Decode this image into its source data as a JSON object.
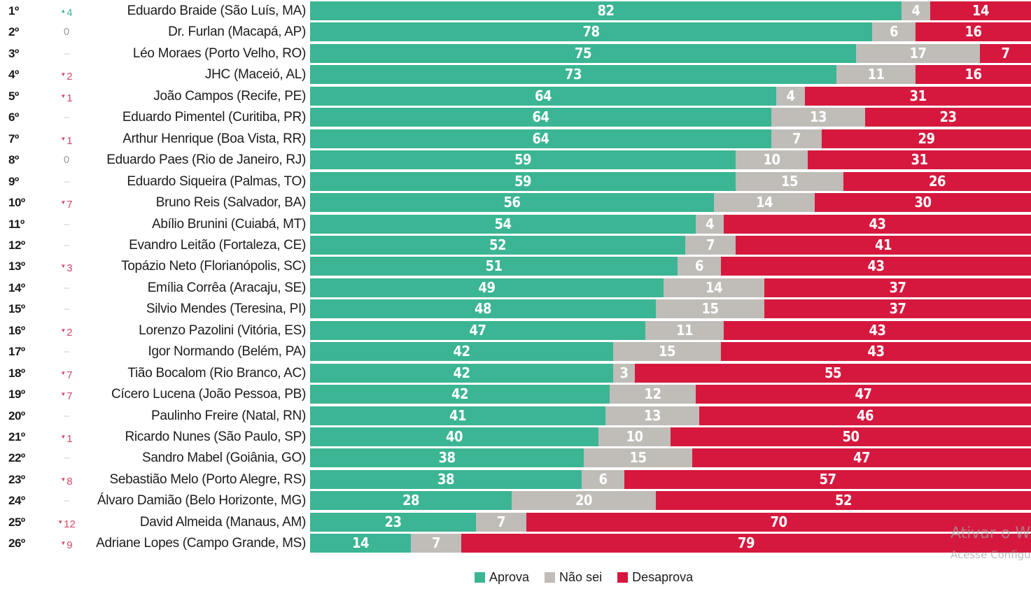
{
  "chart_data": {
    "type": "bar",
    "orientation": "horizontal",
    "stacked": true,
    "normalized_percent": true,
    "title": "",
    "xlabel": "",
    "ylabel": "",
    "xlim": [
      0,
      100
    ],
    "grid": false,
    "legend_placement": "bottom-center",
    "series": [
      {
        "name": "Aprova",
        "color": "#3bb594"
      },
      {
        "name": "Não sei",
        "color": "#c0bcb8"
      },
      {
        "name": "Desaprova",
        "color": "#d6183e"
      }
    ],
    "rows": [
      {
        "rank": "1º",
        "change": "4",
        "trend": "up",
        "name": "Eduardo Braide (São Luís, MA)",
        "values": [
          82,
          4,
          14
        ]
      },
      {
        "rank": "2º",
        "change": "0",
        "trend": "same",
        "name": "Dr. Furlan (Macapá, AP)",
        "values": [
          78,
          6,
          16
        ]
      },
      {
        "rank": "3º",
        "change": "–",
        "trend": "none",
        "name": "Léo Moraes (Porto Velho, RO)",
        "values": [
          75,
          17,
          7
        ]
      },
      {
        "rank": "4º",
        "change": "2",
        "trend": "down",
        "name": "JHC (Maceió, AL)",
        "values": [
          73,
          11,
          16
        ]
      },
      {
        "rank": "5º",
        "change": "1",
        "trend": "down",
        "name": "João Campos (Recife, PE)",
        "values": [
          64,
          4,
          31
        ]
      },
      {
        "rank": "6º",
        "change": "–",
        "trend": "none",
        "name": "Eduardo Pimentel (Curitiba, PR)",
        "values": [
          64,
          13,
          23
        ]
      },
      {
        "rank": "7º",
        "change": "1",
        "trend": "down",
        "name": "Arthur Henrique (Boa Vista, RR)",
        "values": [
          64,
          7,
          29
        ]
      },
      {
        "rank": "8º",
        "change": "0",
        "trend": "same",
        "name": "Eduardo Paes (Rio de Janeiro, RJ)",
        "values": [
          59,
          10,
          31
        ]
      },
      {
        "rank": "9º",
        "change": "–",
        "trend": "none",
        "name": "Eduardo Siqueira (Palmas, TO)",
        "values": [
          59,
          15,
          26
        ]
      },
      {
        "rank": "10º",
        "change": "7",
        "trend": "down",
        "name": "Bruno Reis (Salvador, BA)",
        "values": [
          56,
          14,
          30
        ]
      },
      {
        "rank": "11º",
        "change": "–",
        "trend": "none",
        "name": "Abílio Brunini (Cuiabá, MT)",
        "values": [
          54,
          4,
          43
        ]
      },
      {
        "rank": "12º",
        "change": "–",
        "trend": "none",
        "name": "Evandro Leitão (Fortaleza, CE)",
        "values": [
          52,
          7,
          41
        ]
      },
      {
        "rank": "13º",
        "change": "3",
        "trend": "down",
        "name": "Topázio Neto (Florianópolis, SC)",
        "values": [
          51,
          6,
          43
        ]
      },
      {
        "rank": "14º",
        "change": "–",
        "trend": "none",
        "name": "Emília Corrêa (Aracaju, SE)",
        "values": [
          49,
          14,
          37
        ]
      },
      {
        "rank": "15º",
        "change": "–",
        "trend": "none",
        "name": "Silvio Mendes (Teresina, PI)",
        "values": [
          48,
          15,
          37
        ]
      },
      {
        "rank": "16º",
        "change": "2",
        "trend": "down",
        "name": "Lorenzo Pazolini (Vitória, ES)",
        "values": [
          47,
          11,
          43
        ]
      },
      {
        "rank": "17º",
        "change": "–",
        "trend": "none",
        "name": "Igor Normando (Belém, PA)",
        "values": [
          42,
          15,
          43
        ]
      },
      {
        "rank": "18º",
        "change": "7",
        "trend": "down",
        "name": "Tião Bocalom (Rio Branco, AC)",
        "values": [
          42,
          3,
          55
        ]
      },
      {
        "rank": "19º",
        "change": "7",
        "trend": "down",
        "name": "Cícero Lucena (João Pessoa, PB)",
        "values": [
          42,
          12,
          47
        ]
      },
      {
        "rank": "20º",
        "change": "–",
        "trend": "none",
        "name": "Paulinho Freire (Natal, RN)",
        "values": [
          41,
          13,
          46
        ]
      },
      {
        "rank": "21º",
        "change": "1",
        "trend": "down",
        "name": "Ricardo Nunes (São Paulo, SP)",
        "values": [
          40,
          10,
          50
        ]
      },
      {
        "rank": "22º",
        "change": "–",
        "trend": "none",
        "name": "Sandro Mabel (Goiânia, GO)",
        "values": [
          38,
          15,
          47
        ]
      },
      {
        "rank": "23º",
        "change": "8",
        "trend": "down",
        "name": "Sebastião Melo (Porto Alegre, RS)",
        "values": [
          38,
          6,
          57
        ]
      },
      {
        "rank": "24º",
        "change": "–",
        "trend": "none",
        "name": "Álvaro Damião (Belo Horizonte, MG)",
        "values": [
          28,
          20,
          52
        ]
      },
      {
        "rank": "25º",
        "change": "12",
        "trend": "down",
        "name": "David Almeida (Manaus, AM)",
        "values": [
          23,
          7,
          70
        ]
      },
      {
        "rank": "26º",
        "change": "9",
        "trend": "down",
        "name": "Adriane Lopes (Campo Grande, MS)",
        "values": [
          14,
          7,
          79
        ]
      }
    ]
  },
  "trend_colors": {
    "up": "#3bb594",
    "down": "#d6486a",
    "same": "#9a9a9a",
    "none": "#cccccc"
  },
  "trend_icons": {
    "up": "▲",
    "down": "▼"
  },
  "legend": {
    "items": [
      {
        "label": "Aprova",
        "color": "#3bb594"
      },
      {
        "label": "Não sei",
        "color": "#c0bcb8"
      },
      {
        "label": "Desaprova",
        "color": "#d6183e"
      }
    ]
  },
  "watermark": {
    "line1": "Ativar o W",
    "line2": "Acesse Configu"
  }
}
